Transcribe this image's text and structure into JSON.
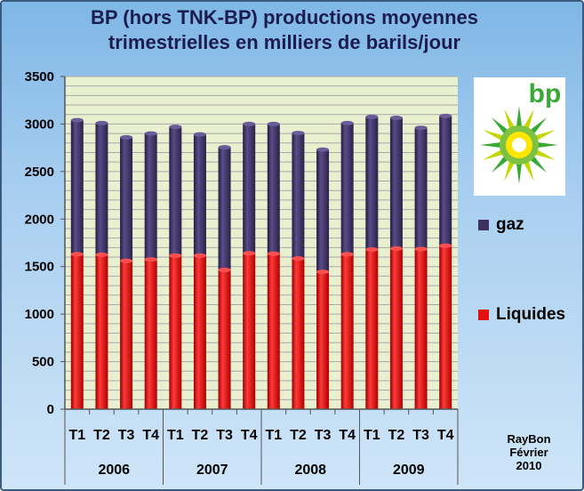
{
  "chart_data": {
    "type": "bar",
    "stacked": true,
    "title": [
      "BP (hors TNK-BP) productions moyennes",
      "trimestrielles en milliers de barils/jour"
    ],
    "categories": [
      "T1",
      "T2",
      "T3",
      "T4",
      "T1",
      "T2",
      "T3",
      "T4",
      "T1",
      "T2",
      "T3",
      "T4",
      "T1",
      "T2",
      "T3",
      "T4"
    ],
    "years": [
      "2006",
      "2007",
      "2008",
      "2009"
    ],
    "series": [
      {
        "name": "Liquides",
        "color": "#e01010",
        "values": [
          1630,
          1625,
          1560,
          1575,
          1615,
          1615,
          1465,
          1640,
          1635,
          1585,
          1445,
          1630,
          1680,
          1690,
          1685,
          1720
        ]
      },
      {
        "name": "gaz",
        "color": "#3d3160",
        "values": [
          1410,
          1385,
          1300,
          1325,
          1355,
          1275,
          1290,
          1360,
          1365,
          1320,
          1285,
          1380,
          1395,
          1375,
          1275,
          1365
        ]
      }
    ],
    "ylim": [
      0,
      3500
    ],
    "yticks": [
      0,
      500,
      1000,
      1500,
      2000,
      2500,
      3000,
      3500
    ],
    "grid": true,
    "legend_position": "right"
  },
  "colors": {
    "plot_background": "#e9f0cf",
    "gridline": "#a9a9a9",
    "liquides": "#e01010",
    "gaz": "#3d3160"
  },
  "logo": {
    "name": "bp-helios-logo",
    "text": "bp"
  },
  "credit": {
    "line1": "RayBon",
    "line2": "Février",
    "line3": "2010"
  }
}
